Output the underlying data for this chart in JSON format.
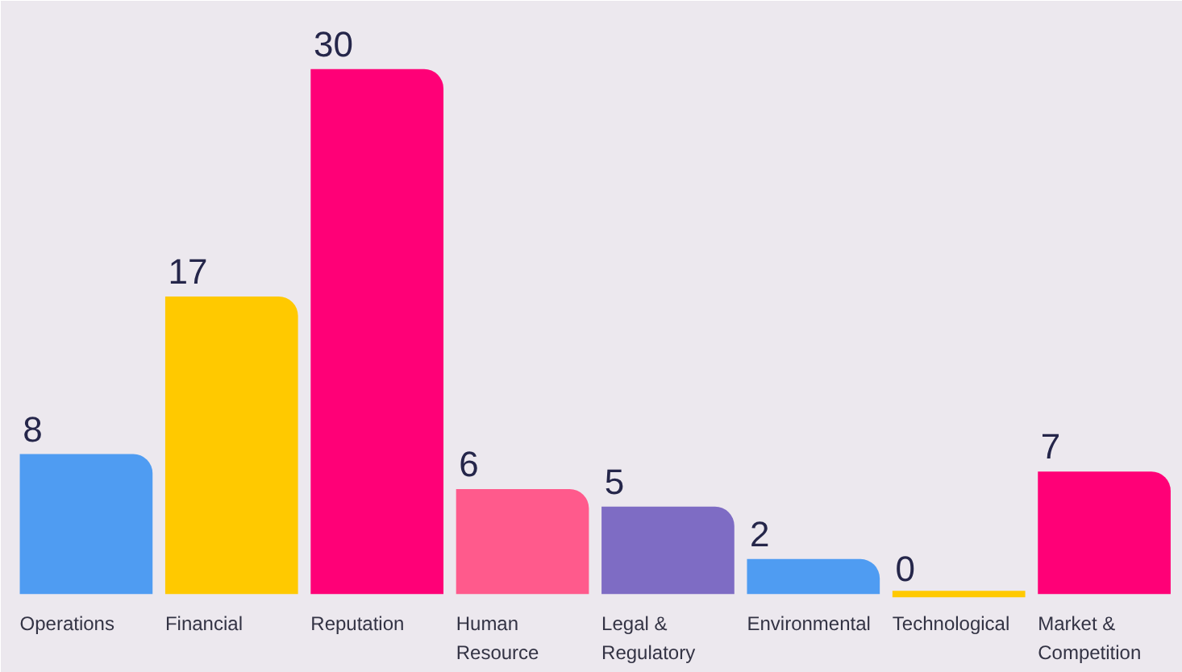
{
  "chart_data": {
    "type": "bar",
    "categories": [
      "Operations",
      "Financial",
      "Reputation",
      "Human Resource",
      "Legal & Regulatory",
      "Environmental",
      "Technological",
      "Market & Competition"
    ],
    "values": [
      8,
      17,
      30,
      6,
      5,
      2,
      0,
      7
    ],
    "colors": [
      "#4f9cf2",
      "#ffc900",
      "#ff0077",
      "#ff5a8c",
      "#7e6cc4",
      "#4f9cf2",
      "#ffc900",
      "#ff0077"
    ],
    "data_labels": true,
    "grid": false
  }
}
